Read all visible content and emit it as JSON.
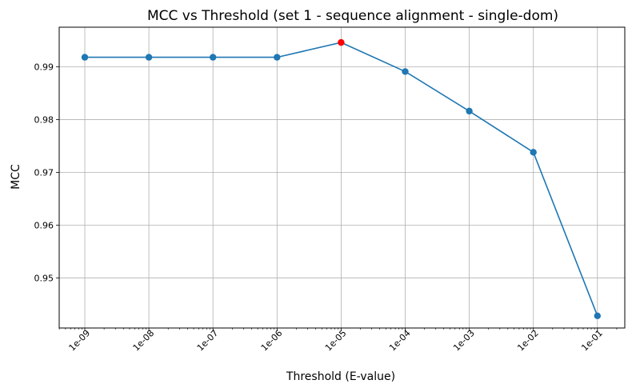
{
  "chart_data": {
    "type": "line",
    "title": "MCC vs Threshold (set 1  - sequence alignment - single-dom)",
    "xlabel": "Threshold (E-value)",
    "ylabel": "MCC",
    "x_scale": "log",
    "x": [
      "1e-09",
      "1e-08",
      "1e-07",
      "1e-06",
      "1e-05",
      "1e-04",
      "1e-03",
      "1e-02",
      "1e-01"
    ],
    "x_values": [
      1e-09,
      1e-08,
      1e-07,
      1e-06,
      1e-05,
      0.0001,
      0.001,
      0.01,
      0.1
    ],
    "y_ticks": [
      "0.95",
      "0.96",
      "0.97",
      "0.98",
      "0.99"
    ],
    "ylim": [
      0.9405,
      0.9975
    ],
    "grid": true,
    "series": [
      {
        "values": [
          0.9918,
          0.9918,
          0.9918,
          0.9918,
          0.9946,
          0.9891,
          0.9816,
          0.9738,
          0.9428
        ],
        "color": "#1f77b4",
        "highlight_index": 4,
        "highlight_color": "#ff0000"
      }
    ]
  }
}
